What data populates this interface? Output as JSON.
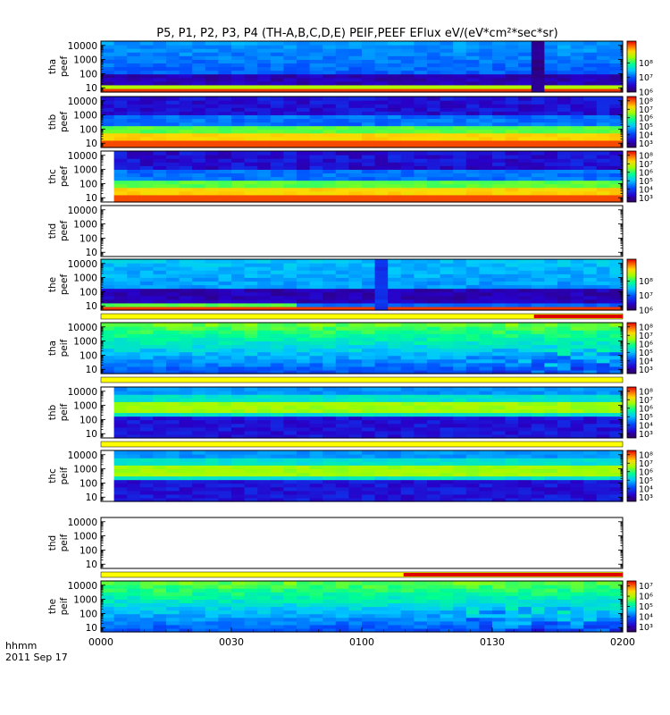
{
  "chart_data": {
    "type": "heatmap",
    "title": "P5, P1, P2, P3, P4 (TH-A,B,C,D,E) PEIF,PEEF EFlux eV/(eV*cm²*sec*sr)",
    "x_ticks": [
      "0000",
      "0030",
      "0100",
      "0130",
      "0200"
    ],
    "x_label_line1": "hhmm",
    "x_label_line2": "2011 Sep 17",
    "xlim": [
      "00:00",
      "02:00"
    ],
    "y_scale": "log",
    "ylim": [
      5,
      20000
    ],
    "y_ticks": [
      "10",
      "100",
      "1000",
      "10000"
    ],
    "panels": [
      {
        "probe": "tha",
        "product": "peef",
        "ylabel_top": "tha",
        "ylabel_bottom": "peef",
        "colorbar_labels": [
          "10⁶",
          "10⁷",
          "10⁸"
        ],
        "colorbar_range": [
          5.0,
          8.5
        ],
        "status_bar": "none"
      },
      {
        "probe": "thb",
        "product": "peef",
        "ylabel_top": "thb",
        "ylabel_bottom": "peef",
        "colorbar_labels": [
          "10³",
          "10⁴",
          "10⁵",
          "10⁶",
          "10⁷",
          "10⁸"
        ],
        "colorbar_range": [
          2.5,
          8.5
        ],
        "status_bar": "none"
      },
      {
        "probe": "thc",
        "product": "peef",
        "ylabel_top": "thc",
        "ylabel_bottom": "peef",
        "colorbar_labels": [
          "10³",
          "10⁴",
          "10⁵",
          "10⁶",
          "10⁷",
          "10⁸"
        ],
        "colorbar_range": [
          2.5,
          8.5
        ],
        "status_bar": "none"
      },
      {
        "probe": "thd",
        "product": "peef",
        "ylabel_top": "thd",
        "ylabel_bottom": "peef",
        "colorbar_labels": [],
        "colorbar_range": null,
        "status_bar": "none"
      },
      {
        "probe": "the",
        "product": "peef",
        "ylabel_top": "the",
        "ylabel_bottom": "peef",
        "colorbar_labels": [
          "10⁶",
          "10⁷",
          "10⁸"
        ],
        "colorbar_range": [
          5.0,
          8.5
        ],
        "status_bar": "yellow-red"
      },
      {
        "probe": "tha",
        "product": "peif",
        "ylabel_top": "tha",
        "ylabel_bottom": "peif",
        "colorbar_labels": [
          "10³",
          "10⁴",
          "10⁵",
          "10⁶",
          "10⁷",
          "10⁸"
        ],
        "colorbar_range": [
          2.5,
          8.5
        ],
        "status_bar": "yellow"
      },
      {
        "probe": "thb",
        "product": "peif",
        "ylabel_top": "thb",
        "ylabel_bottom": "peif",
        "colorbar_labels": [
          "10³",
          "10⁴",
          "10⁵",
          "10⁶",
          "10⁷",
          "10⁸"
        ],
        "colorbar_range": [
          2.5,
          8.5
        ],
        "status_bar": "yellow"
      },
      {
        "probe": "thc",
        "product": "peif",
        "ylabel_top": "thc",
        "ylabel_bottom": "peif",
        "colorbar_labels": [
          "10³",
          "10⁴",
          "10⁵",
          "10⁶",
          "10⁷",
          "10⁸"
        ],
        "colorbar_range": [
          2.5,
          8.5
        ],
        "status_bar": "none"
      },
      {
        "probe": "thd",
        "product": "peif",
        "ylabel_top": "thd",
        "ylabel_bottom": "peif",
        "colorbar_labels": [],
        "colorbar_range": null,
        "status_bar": "yellow-red"
      },
      {
        "probe": "the",
        "product": "peif",
        "ylabel_top": "the",
        "ylabel_bottom": "peif",
        "colorbar_labels": [
          "10³",
          "10⁴",
          "10⁵",
          "10⁶",
          "10⁷"
        ],
        "colorbar_range": [
          2.5,
          7.5
        ],
        "status_bar": "none"
      }
    ]
  }
}
